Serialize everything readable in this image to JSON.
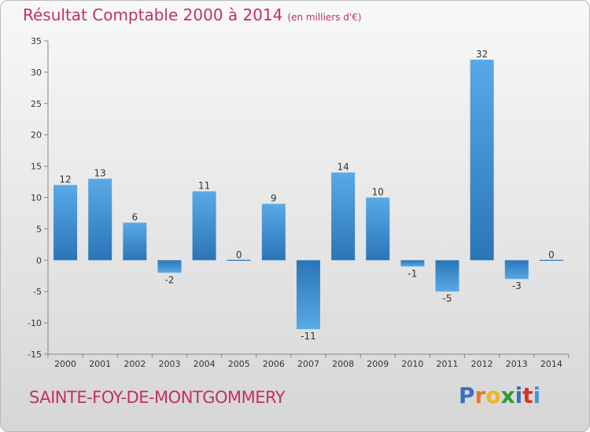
{
  "title": "Résultat Comptable 2000 à 2014",
  "unit": "(en milliers d'€)",
  "commune": "SAINTE-FOY-DE-MONTGOMMERY",
  "brand": {
    "name": "Proxiti",
    "letters": [
      "P",
      "r",
      "o",
      "x",
      "i",
      "t",
      "i"
    ],
    "colors": [
      "#3a6fbf",
      "#e8791e",
      "#f2b31b",
      "#2e9a3a",
      "#3a6fbf",
      "#d6332b",
      "#3a9ad9"
    ]
  },
  "colors": {
    "title": "#c0325f",
    "bar_light": "#5aa9e6",
    "bar_dark": "#2a75b8",
    "axis": "#888888"
  },
  "chart_data": {
    "type": "bar",
    "title": "Résultat Comptable 2000 à 2014",
    "categories": [
      "2000",
      "2001",
      "2002",
      "2003",
      "2004",
      "2005",
      "2006",
      "2007",
      "2008",
      "2009",
      "2010",
      "2011",
      "2012",
      "2013",
      "2014"
    ],
    "values": [
      12,
      13,
      6,
      -2,
      11,
      0,
      9,
      -11,
      14,
      10,
      -1,
      -5,
      32,
      -3,
      0
    ],
    "data_labels": [
      "12",
      "13",
      "6",
      "-2",
      "11",
      "0",
      "9",
      "-11",
      "14",
      "10",
      "-1",
      "-5",
      "32",
      "-3",
      "0"
    ],
    "xlabel": "",
    "ylabel": "",
    "ylim": [
      -15,
      35
    ],
    "yticks": [
      -15,
      -10,
      -5,
      0,
      5,
      10,
      15,
      20,
      25,
      30,
      35
    ],
    "ytick_labels": [
      "-15",
      "-10",
      "-5",
      "0",
      "5",
      "10",
      "15",
      "20",
      "25",
      "30",
      "35"
    ],
    "grid": false,
    "legend": "none"
  }
}
